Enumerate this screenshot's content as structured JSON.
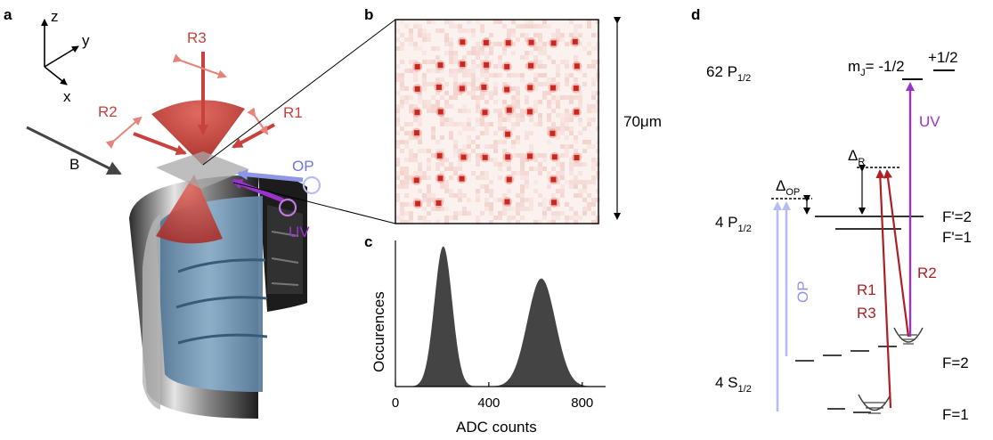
{
  "colors": {
    "red_beam": "#c8413c",
    "light_red": "#e8837c",
    "op_blue": "#8f96e6",
    "uv_purple": "#9933cc",
    "hist_fill": "#444444",
    "lens_blue": "#6f93b0",
    "pixel_red": "#d03a22"
  },
  "panel_a": {
    "letter": "a",
    "axes": {
      "z": "z",
      "y": "y",
      "x": "x"
    },
    "field_label": "B",
    "beams": {
      "r1": "R1",
      "r2": "R2",
      "r3": "R3",
      "op": "OP",
      "uv": "UV"
    }
  },
  "panel_b": {
    "letter": "b",
    "scale_label": "70μm"
  },
  "panel_c": {
    "letter": "c",
    "chart_data": {
      "type": "area",
      "xlabel": "ADC counts",
      "ylabel": "Occurences",
      "xlim": [
        0,
        900
      ],
      "ylim": [
        0,
        1
      ],
      "xticks": [
        "0",
        "400",
        "800"
      ],
      "xtick_values": [
        0,
        400,
        800
      ],
      "peaks": [
        {
          "center": 205,
          "width": 38,
          "height": 0.96
        },
        {
          "center": 625,
          "width": 60,
          "height": 0.74
        }
      ],
      "grid": false
    }
  },
  "panel_d": {
    "letter": "d",
    "level_62p": "62 P",
    "level_62p_sub": "1/2",
    "mj_label": "m",
    "mj_sub": "J",
    "mj_values": "= -1/2",
    "mj_plus": "+1/2",
    "level_4p": "4 P",
    "level_4p_sub": "1/2",
    "level_4s": "4 S",
    "level_4s_sub": "1/2",
    "f_prime_2": "F'=2",
    "f_prime_1": "F'=1",
    "f_2": "F=2",
    "f_1": "F=1",
    "delta_op": "Δ",
    "delta_op_sub": "OP",
    "delta_r": "Δ",
    "delta_r_sub": "R",
    "uv": "UV",
    "op": "OP",
    "r1": "R1",
    "r3": "R3",
    "r2": "R2"
  }
}
